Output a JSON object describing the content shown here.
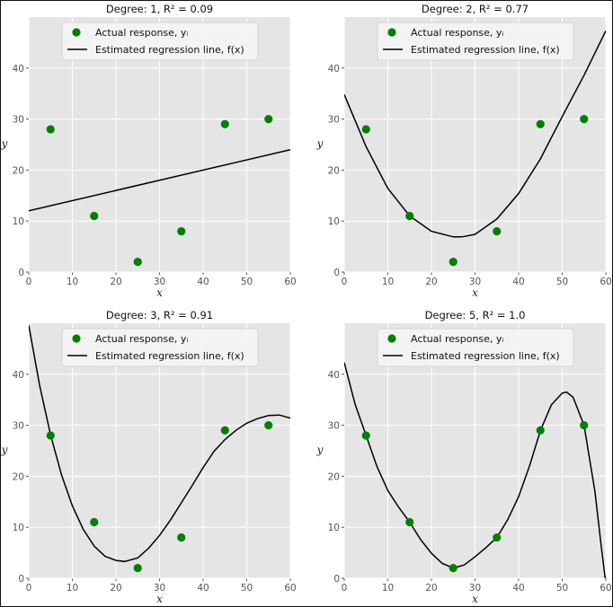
{
  "chart_data": [
    {
      "type": "scatter",
      "title": "Degree: 1, R² = 0.09",
      "xlabel": "x",
      "ylabel": "y",
      "xlim": [
        0,
        60
      ],
      "ylim": [
        0,
        50
      ],
      "xticks": [
        "0",
        "10",
        "20",
        "30",
        "40",
        "50",
        "60"
      ],
      "yticks": [
        "0",
        "10",
        "20",
        "30",
        "40"
      ],
      "grid": true,
      "legend_position": "top-center",
      "series": [
        {
          "name": "Actual response, yᵢ",
          "kind": "scatter",
          "color": "#008000",
          "x": [
            5,
            15,
            25,
            35,
            45,
            55
          ],
          "y": [
            28,
            11,
            2,
            8,
            29,
            30
          ]
        },
        {
          "name": "Estimated regression line, f(x)",
          "kind": "line",
          "color": "#000000",
          "x": [
            0,
            60
          ],
          "y": [
            12.0,
            24.0
          ]
        }
      ]
    },
    {
      "type": "scatter",
      "title": "Degree: 2, R² = 0.77",
      "xlabel": "x",
      "ylabel": "y",
      "xlim": [
        0,
        60
      ],
      "ylim": [
        0,
        50
      ],
      "xticks": [
        "0",
        "10",
        "20",
        "30",
        "40",
        "50",
        "60"
      ],
      "yticks": [
        "0",
        "10",
        "20",
        "30",
        "40"
      ],
      "grid": true,
      "legend_position": "top-center",
      "series": [
        {
          "name": "Actual response, yᵢ",
          "kind": "scatter",
          "color": "#008000",
          "x": [
            5,
            15,
            25,
            35,
            45,
            55
          ],
          "y": [
            28,
            11,
            2,
            8,
            29,
            30
          ]
        },
        {
          "name": "Estimated regression line, f(x)",
          "kind": "line",
          "color": "#000000",
          "x": [
            0,
            5,
            10,
            15,
            20,
            25,
            27,
            30,
            35,
            40,
            45,
            50,
            55,
            60
          ],
          "y": [
            34.8,
            24.6,
            16.4,
            11.0,
            8.0,
            6.9,
            6.9,
            7.4,
            10.4,
            15.4,
            22.2,
            30.5,
            38.6,
            47.3
          ]
        }
      ]
    },
    {
      "type": "scatter",
      "title": "Degree: 3, R² = 0.91",
      "xlabel": "x",
      "ylabel": "y",
      "xlim": [
        0,
        60
      ],
      "ylim": [
        0,
        50
      ],
      "xticks": [
        "0",
        "10",
        "20",
        "30",
        "40",
        "50",
        "60"
      ],
      "yticks": [
        "0",
        "10",
        "20",
        "30",
        "40"
      ],
      "grid": true,
      "legend_position": "top-center",
      "series": [
        {
          "name": "Actual response, yᵢ",
          "kind": "scatter",
          "color": "#008000",
          "x": [
            5,
            15,
            25,
            35,
            45,
            55
          ],
          "y": [
            28,
            11,
            2,
            8,
            29,
            30
          ]
        },
        {
          "name": "Estimated regression line, f(x)",
          "kind": "line",
          "color": "#000000",
          "x": [
            0,
            2.5,
            5,
            7.5,
            10,
            12.5,
            15,
            17.5,
            20,
            22,
            25,
            27.5,
            30,
            32.5,
            35,
            37.5,
            40,
            42.5,
            45,
            47.5,
            50,
            52.5,
            55,
            57.5,
            60
          ],
          "y": [
            49.6,
            37.8,
            28.1,
            20.3,
            14.2,
            9.6,
            6.3,
            4.3,
            3.5,
            3.3,
            4.0,
            5.9,
            8.4,
            11.4,
            14.8,
            18.2,
            21.7,
            24.9,
            27.2,
            29.0,
            30.4,
            31.3,
            31.9,
            32.0,
            31.4
          ]
        }
      ]
    },
    {
      "type": "scatter",
      "title": "Degree: 5, R² = 1.0",
      "xlabel": "x",
      "ylabel": "y",
      "xlim": [
        0,
        60
      ],
      "ylim": [
        0,
        50
      ],
      "xticks": [
        "0",
        "10",
        "20",
        "30",
        "40",
        "50",
        "60"
      ],
      "yticks": [
        "0",
        "10",
        "20",
        "30",
        "40"
      ],
      "grid": true,
      "legend_position": "top-center",
      "series": [
        {
          "name": "Actual response, yᵢ",
          "kind": "scatter",
          "color": "#008000",
          "x": [
            5,
            15,
            25,
            35,
            45,
            55
          ],
          "y": [
            28,
            11,
            2,
            8,
            29,
            30
          ]
        },
        {
          "name": "Estimated regression line, f(x)",
          "kind": "line",
          "color": "#000000",
          "x": [
            0,
            2.5,
            5,
            7.5,
            10,
            12.5,
            15,
            17.5,
            20,
            22.5,
            25,
            27.5,
            30,
            32.5,
            35,
            37.5,
            40,
            42.5,
            45,
            47.5,
            50,
            51,
            52.5,
            55,
            57.5,
            59,
            60
          ],
          "y": [
            42.3,
            34.1,
            28.0,
            21.9,
            17.2,
            13.9,
            11.0,
            7.6,
            4.9,
            2.9,
            2.0,
            2.6,
            4.2,
            6.0,
            8.0,
            11.5,
            16.0,
            22.0,
            29.0,
            34.0,
            36.3,
            36.5,
            35.5,
            30.0,
            17.0,
            6.0,
            -1.0
          ]
        }
      ]
    }
  ]
}
